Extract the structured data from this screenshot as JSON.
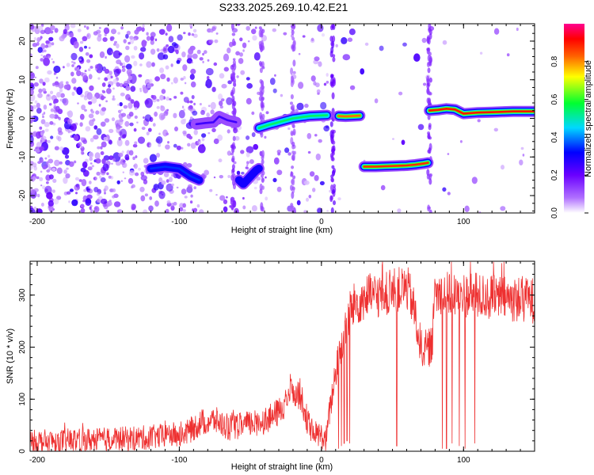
{
  "page": {
    "title": "S233.2025.269.10.42.E21"
  },
  "chart_data": [
    {
      "type": "heatmap",
      "xlabel": "Height of straight line (km)",
      "ylabel": "Frequency (Hz)",
      "xlim": [
        -205,
        150
      ],
      "ylim": [
        -24.5,
        24.5
      ],
      "xticks": [
        -200,
        -100,
        0,
        100
      ],
      "xtick_labels": [
        "-200",
        "-100",
        "0",
        "100"
      ],
      "yticks": [
        -20,
        -10,
        0,
        10,
        20
      ],
      "ytick_labels": [
        "-20",
        "-10",
        "0",
        "10",
        "20"
      ],
      "colorbar": {
        "label": "Normalized spectral amplitude",
        "range": [
          0,
          1
        ],
        "ticks": [
          0,
          0.2,
          0.4,
          0.6,
          0.8
        ],
        "tick_labels": [
          "0.0",
          "0.2",
          "0.4",
          "0.6",
          "0.8"
        ],
        "colormap": [
          "#ffffff",
          "#8a00ff",
          "#0000ff",
          "#00e0ff",
          "#00ff40",
          "#ffff00",
          "#ff6000",
          "#ff0000",
          "#ff00a0"
        ]
      },
      "tracks": [
        {
          "x": [
            -88,
            -82,
            -76,
            -72,
            -66,
            -60
          ],
          "y": [
            -1.5,
            -1.2,
            -1.0,
            0.5,
            -0.5,
            -1.0
          ],
          "amp": 0.25
        },
        {
          "x": [
            -44,
            -38,
            -32,
            -26,
            -20,
            -14,
            -8,
            -2,
            4
          ],
          "y": [
            -2.5,
            -1.8,
            -1.2,
            -0.6,
            0.0,
            0.3,
            0.6,
            0.7,
            0.8
          ],
          "amp": 0.55
        },
        {
          "x": [
            12,
            17,
            22,
            27
          ],
          "y": [
            0.6,
            0.5,
            0.6,
            0.7
          ],
          "amp": 0.82
        },
        {
          "x": [
            30,
            38,
            45,
            53,
            60,
            66,
            72,
            75
          ],
          "y": [
            -12.5,
            -12.5,
            -12.4,
            -12.3,
            -12.2,
            -12.0,
            -11.7,
            -11.5
          ],
          "amp": 0.88
        },
        {
          "x": [
            76,
            82,
            88,
            94,
            100,
            110,
            120,
            135,
            150
          ],
          "y": [
            2.0,
            2.2,
            2.5,
            2.3,
            1.2,
            1.5,
            1.6,
            1.8,
            1.8
          ],
          "amp": 0.9
        },
        {
          "x": [
            -120,
            -110,
            -100,
            -92,
            -86
          ],
          "y": [
            -13,
            -12.5,
            -13,
            -15,
            -16
          ],
          "amp": 0.35
        },
        {
          "x": [
            -58,
            -55,
            -46,
            -44
          ],
          "y": [
            -16,
            -17,
            -13.5,
            -13
          ],
          "amp": 0.3
        }
      ]
    },
    {
      "type": "line",
      "xlabel": "Height of straight line (km)",
      "ylabel": "SNR (10 * v/v)",
      "xlim": [
        -205,
        150
      ],
      "ylim": [
        0,
        365
      ],
      "xticks": [
        -200,
        -100,
        0,
        100
      ],
      "xtick_labels": [
        "-200",
        "-100",
        "0",
        "100"
      ],
      "yticks": [
        0,
        100,
        200,
        300
      ],
      "ytick_labels": [
        "0",
        "100",
        "200",
        "300"
      ],
      "line_color": "#ee3030",
      "envelope": {
        "x": [
          -205,
          -160,
          -130,
          -115,
          -95,
          -85,
          -75,
          -65,
          -55,
          -45,
          -35,
          -28,
          -22,
          -15,
          -8,
          0,
          3,
          6,
          10,
          14,
          18,
          20,
          25,
          30,
          40,
          50,
          55,
          60,
          63,
          66,
          70,
          75,
          78,
          80,
          85,
          90,
          100,
          120,
          150
        ],
        "y": [
          18,
          22,
          25,
          28,
          35,
          55,
          60,
          45,
          50,
          55,
          65,
          80,
          120,
          110,
          40,
          30,
          18,
          80,
          150,
          200,
          240,
          270,
          285,
          295,
          300,
          305,
          310,
          315,
          295,
          260,
          200,
          195,
          210,
          300,
          305,
          300,
          300,
          295,
          290
        ]
      },
      "dropouts": [
        {
          "x": 12,
          "y": 5
        },
        {
          "x": 14,
          "y": 10
        },
        {
          "x": 16,
          "y": 15
        },
        {
          "x": 18,
          "y": 20
        },
        {
          "x": 20,
          "y": 15
        },
        {
          "x": 53,
          "y": 10
        },
        {
          "x": 85,
          "y": 5
        },
        {
          "x": 88,
          "y": 5
        },
        {
          "x": 92,
          "y": 15
        },
        {
          "x": 97,
          "y": 10
        },
        {
          "x": 101,
          "y": 5
        },
        {
          "x": 108,
          "y": 15
        }
      ],
      "noise": 22
    }
  ]
}
